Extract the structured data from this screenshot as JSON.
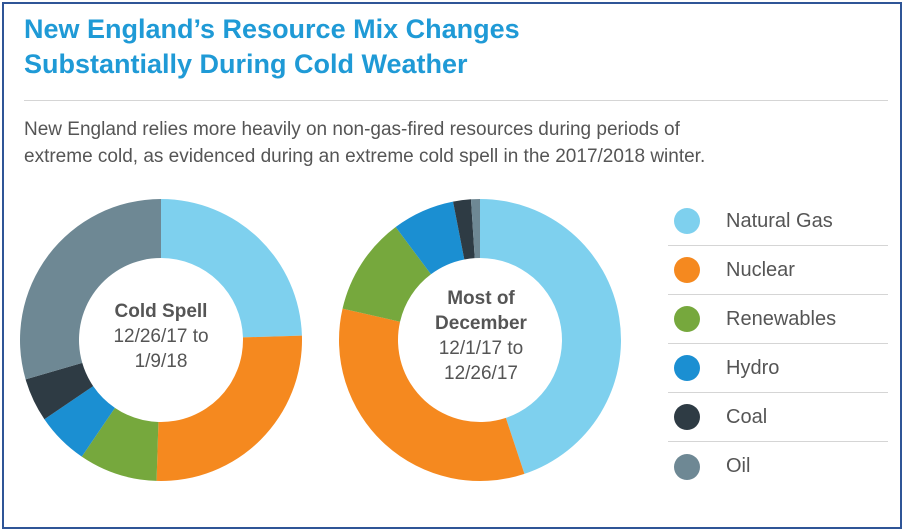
{
  "header": {
    "title_line1": "New England’s Resource Mix Changes",
    "title_line2": "Substantially During Cold Weather",
    "subtitle_line1": "New England relies more heavily on non-gas-fired resources during periods of",
    "subtitle_line2": "extreme cold, as evidenced during an extreme cold spell in the 2017/2018 winter."
  },
  "chart_data": [
    {
      "type": "pie",
      "donut": true,
      "center_title": "Cold Spell",
      "center_line2": "12/26/17 to",
      "center_line3": "1/9/18",
      "categories": [
        "Natural Gas",
        "Nuclear",
        "Renewables",
        "Hydro",
        "Coal",
        "Oil"
      ],
      "values": [
        24.5,
        26,
        9,
        6,
        5,
        29.5
      ]
    },
    {
      "type": "pie",
      "donut": true,
      "center_title_line1": "Most of",
      "center_title_line2": "December",
      "center_line3": "12/1/17 to",
      "center_line4": "12/26/17",
      "categories": [
        "Natural Gas",
        "Nuclear",
        "Renewables",
        "Hydro",
        "Coal",
        "Oil"
      ],
      "values": [
        44,
        33,
        11,
        7,
        2,
        1
      ]
    }
  ],
  "legend": {
    "items": [
      {
        "label": "Natural Gas",
        "color": "#7ed0ee"
      },
      {
        "label": "Nuclear",
        "color": "#f5891f"
      },
      {
        "label": "Renewables",
        "color": "#76a83d"
      },
      {
        "label": "Hydro",
        "color": "#1b8fd2"
      },
      {
        "label": "Coal",
        "color": "#2e3b44"
      },
      {
        "label": "Oil",
        "color": "#6e8894"
      }
    ]
  }
}
